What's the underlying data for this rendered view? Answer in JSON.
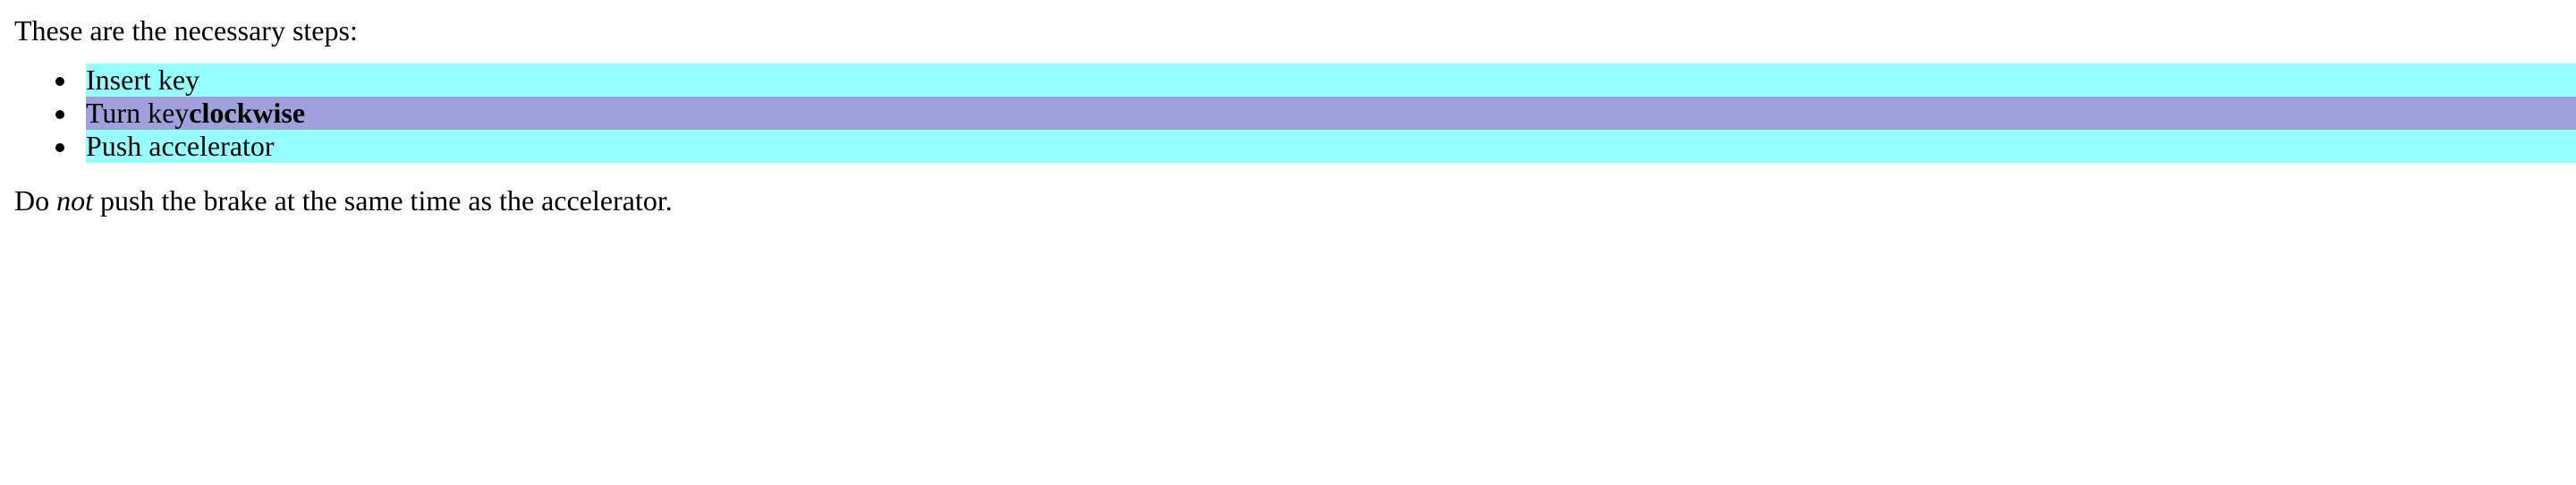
{
  "intro": "These are the necessary steps:",
  "steps": [
    {
      "text": "Insert key",
      "bold": "",
      "color": "#96FFFF"
    },
    {
      "text": "Turn key ",
      "bold": "clockwise",
      "color": "#A0A0DC"
    },
    {
      "text": "Push accelerator",
      "bold": "",
      "color": "#96FFFF"
    }
  ],
  "note": {
    "before": "Do ",
    "emphasis": "not",
    "after": " push the brake at the same time as the accelerator."
  }
}
